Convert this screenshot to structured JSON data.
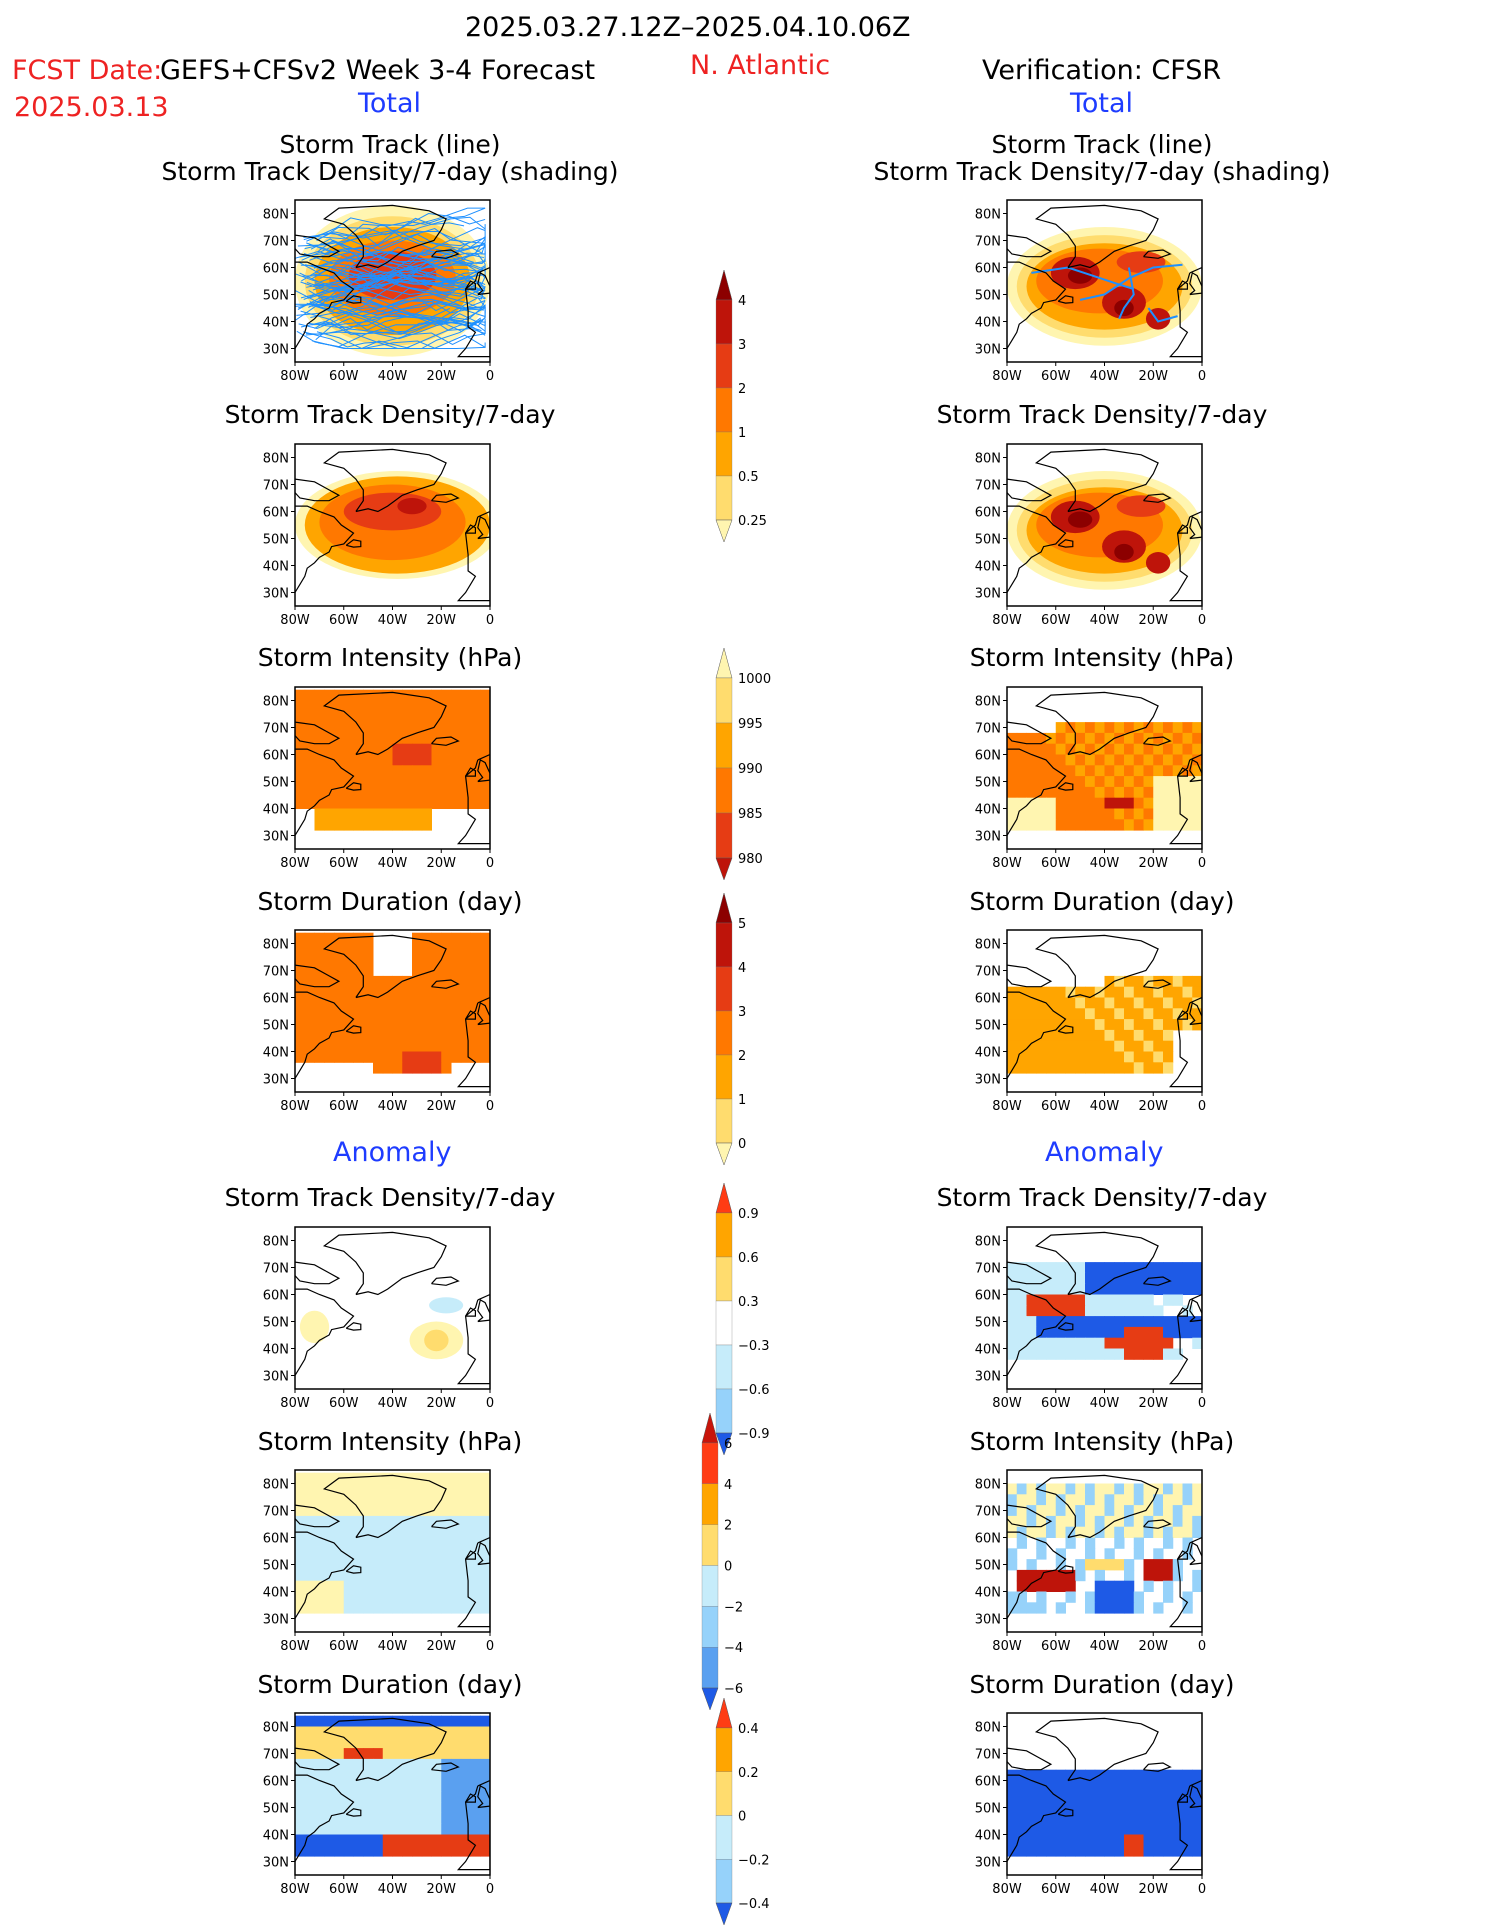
{
  "header": {
    "period": "2025.03.27.12Z–2025.04.10.06Z",
    "fcst_label": "FCST Date:",
    "fcst_date": "2025.03.13",
    "model": "GEFS+CFSv2 Week 3-4 Forecast",
    "region": "N. Atlantic",
    "verification": "Verification: CFSR",
    "total_left": "Total",
    "total_right": "Total",
    "anomaly_left": "Anomaly",
    "anomaly_right": "Anomaly"
  },
  "panel_titles": {
    "track_line": "Storm Track (line)",
    "track_shading": "Storm Track Density/7-day (shading)",
    "density": "Storm Track Density/7-day",
    "intensity": "Storm Intensity (hPa)",
    "duration": "Storm Duration (day)"
  },
  "axes": {
    "lat_labels": [
      "80N",
      "70N",
      "60N",
      "50N",
      "40N",
      "30N"
    ],
    "lon_labels": [
      "80W",
      "60W",
      "40W",
      "20W",
      "0"
    ]
  },
  "colorbars": {
    "density_total": {
      "labels": [
        "4",
        "3",
        "2",
        "1",
        "0.5",
        "0.25"
      ]
    },
    "intensity_total": {
      "labels": [
        "1000",
        "995",
        "990",
        "985",
        "980"
      ]
    },
    "duration_total": {
      "labels": [
        "5",
        "4",
        "3",
        "2",
        "1",
        "0"
      ]
    },
    "density_anom": {
      "labels": [
        "0.9",
        "0.6",
        "0.3",
        "−0.3",
        "−0.6",
        "−0.9"
      ]
    },
    "intensity_anom": {
      "labels": [
        "6",
        "4",
        "2",
        "0",
        "−2",
        "−4",
        "−6"
      ]
    },
    "duration_anom": {
      "labels": [
        "0.4",
        "0.2",
        "0",
        "−0.2",
        "−0.4"
      ]
    }
  },
  "colors": {
    "warm": [
      "#fff5b0",
      "#ffdc6e",
      "#ffa500",
      "#ff7800",
      "#e63c14",
      "#be140a",
      "#8c0000"
    ],
    "cool": [
      "#c6ecfa",
      "#96d2fa",
      "#5aa0f0",
      "#1e5ae6",
      "#0a3cc8"
    ],
    "track_lines": "#1e90ff"
  }
}
